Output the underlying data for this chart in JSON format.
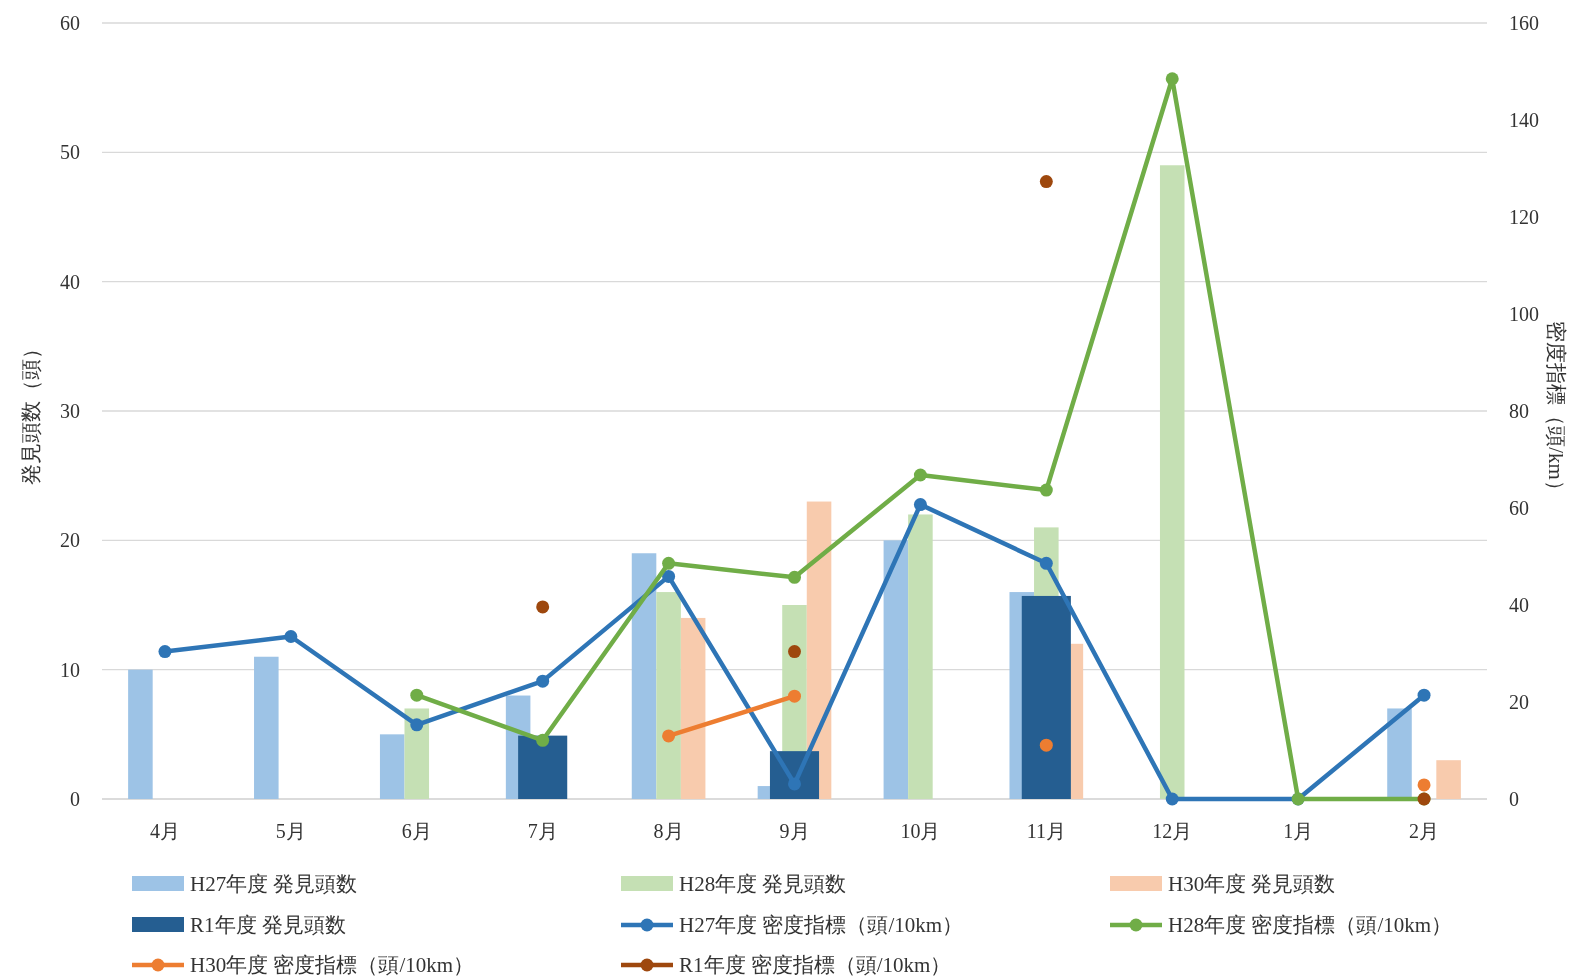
{
  "chart_data": {
    "type": "bar",
    "ylabel": "発見頭数（頭）",
    "y2label": "密度指標（頭/km）",
    "categories": [
      "4月",
      "5月",
      "6月",
      "7月",
      "8月",
      "9月",
      "10月",
      "11月",
      "12月",
      "1月",
      "2月"
    ],
    "series": [
      {
        "name": "H27年度 発見頭数",
        "color": "#9dc3e6",
        "values": [
          10,
          11,
          5,
          8,
          19,
          1,
          20,
          16,
          null,
          null,
          7
        ]
      },
      {
        "name": "H28年度 発見頭数",
        "color": "#c5e0b4",
        "values": [
          null,
          null,
          7,
          null,
          16,
          15,
          22,
          21,
          49,
          null,
          null
        ]
      },
      {
        "name": "H30年度 発見頭数",
        "color": "#f8cbad",
        "values": [
          null,
          null,
          null,
          null,
          14,
          23,
          null,
          12,
          null,
          null,
          3
        ]
      },
      {
        "name": "R1年度 発見頭数",
        "color": "#255e91",
        "values": [
          null,
          null,
          null,
          4.9,
          null,
          3.7,
          null,
          15.7,
          null,
          null,
          null
        ]
      },
      {
        "name": "H27年度 密度指標（頭/10km）",
        "type": "line",
        "axis": "y2",
        "color": "#2e75b6",
        "values": [
          30.4,
          33.5,
          15.3,
          24.3,
          45.9,
          3.1,
          60.7,
          48.6,
          0,
          0,
          21.4
        ]
      },
      {
        "name": "H28年度 密度指標（頭/10km）",
        "type": "line",
        "axis": "y2",
        "color": "#70ad47",
        "values": [
          null,
          null,
          21.4,
          12.1,
          48.6,
          45.7,
          66.8,
          63.7,
          148.5,
          0,
          0
        ]
      },
      {
        "name": "H30年度 密度指標（頭/10km）",
        "type": "line",
        "axis": "y2",
        "color": "#ed7d31",
        "values": [
          null,
          null,
          null,
          null,
          13.0,
          21.2,
          null,
          11.1,
          null,
          null,
          2.9
        ]
      },
      {
        "name": "R1年度 密度指標（頭/10km）",
        "type": "scatter",
        "axis": "y2",
        "color": "#9e480e",
        "values": [
          null,
          null,
          null,
          39.6,
          null,
          30.4,
          null,
          127.3,
          null,
          null,
          0
        ]
      }
    ],
    "ylim": [
      0,
      60
    ],
    "yticks": [
      0,
      10,
      20,
      30,
      40,
      50,
      60
    ],
    "y2lim": [
      0,
      160
    ],
    "y2ticks": [
      0,
      20,
      40,
      60,
      80,
      100,
      120,
      140,
      160
    ],
    "grid": "y",
    "legend": "bottom",
    "marker": "circle"
  }
}
